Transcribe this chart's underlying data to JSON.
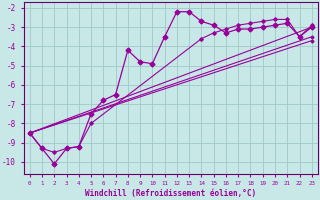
{
  "xlabel": "Windchill (Refroidissement éolien,°C)",
  "xlim": [
    -0.5,
    23.5
  ],
  "ylim": [
    -10.6,
    -1.7
  ],
  "yticks": [
    -10,
    -9,
    -8,
    -7,
    -6,
    -5,
    -4,
    -3,
    -2
  ],
  "xticks": [
    0,
    1,
    2,
    3,
    4,
    5,
    6,
    7,
    8,
    9,
    10,
    11,
    12,
    13,
    14,
    15,
    16,
    17,
    18,
    19,
    20,
    21,
    22,
    23
  ],
  "background_color": "#c8e8e8",
  "grid_color": "#a0c8c8",
  "line_color": "#990099",
  "line1_x": [
    0,
    1,
    2,
    3,
    4,
    5,
    6,
    7,
    8,
    9,
    10,
    11,
    12,
    13,
    14,
    15,
    16,
    17,
    18,
    19,
    20,
    21,
    22,
    23
  ],
  "line1_y": [
    -8.5,
    -9.3,
    -10.1,
    -9.3,
    -9.2,
    -7.5,
    -6.8,
    -6.5,
    -4.2,
    -4.8,
    -4.9,
    -3.5,
    -2.2,
    -2.2,
    -2.7,
    -2.9,
    -3.3,
    -3.1,
    -3.1,
    -3.0,
    -2.9,
    -2.8,
    -3.5,
    -3.0
  ],
  "line2_x": [
    0,
    1,
    2,
    3,
    4,
    5,
    14,
    15,
    16,
    17,
    18,
    19,
    20,
    21,
    22,
    23
  ],
  "line2_y": [
    -8.5,
    -9.3,
    -9.5,
    -9.3,
    -9.2,
    -8.0,
    -3.6,
    -3.3,
    -3.1,
    -2.9,
    -2.8,
    -2.7,
    -2.6,
    -2.6,
    -3.5,
    -2.9
  ],
  "line3_x": [
    0,
    23
  ],
  "line3_y": [
    -8.5,
    -3.0
  ],
  "line4_x": [
    0,
    23
  ],
  "line4_y": [
    -8.5,
    -3.5
  ],
  "line5_x": [
    0,
    23
  ],
  "line5_y": [
    -8.5,
    -3.7
  ]
}
